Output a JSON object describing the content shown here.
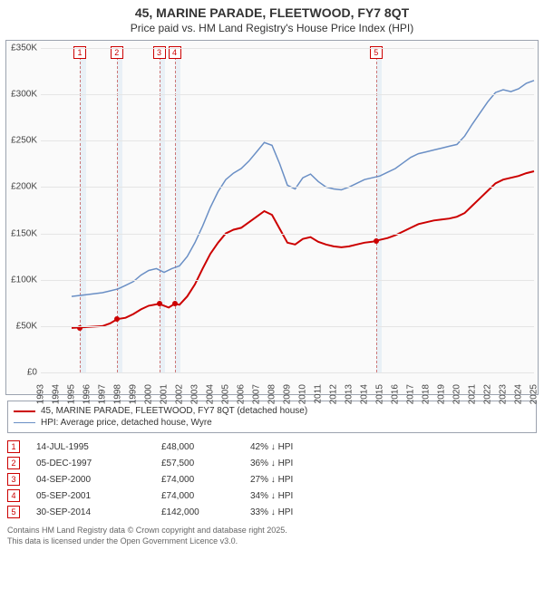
{
  "title1": "45, MARINE PARADE, FLEETWOOD, FY7 8QT",
  "title2": "Price paid vs. HM Land Registry's House Price Index (HPI)",
  "chart": {
    "type": "line",
    "background_color": "#fafafa",
    "grid_color": "#e5e5e5",
    "border_color": "#9ca3af",
    "ylim": [
      0,
      350000
    ],
    "ytick_step": 50000,
    "ytick_labels": [
      "£0",
      "£50K",
      "£100K",
      "£150K",
      "£200K",
      "£250K",
      "£300K",
      "£350K"
    ],
    "x_years": [
      1993,
      1994,
      1995,
      1996,
      1997,
      1998,
      1999,
      2000,
      2001,
      2002,
      2003,
      2004,
      2005,
      2006,
      2007,
      2008,
      2009,
      2010,
      2011,
      2012,
      2013,
      2014,
      2015,
      2016,
      2017,
      2018,
      2019,
      2020,
      2021,
      2022,
      2023,
      2024,
      2025
    ],
    "marker_box_border": "#cc0000",
    "marker_box_text_color": "#cc0000",
    "marker_dash_color": "#cc7777",
    "marker_band_color": "#deeaf4",
    "series": {
      "paid": {
        "label": "45, MARINE PARADE, FLEETWOOD, FY7 8QT (detached house)",
        "color": "#cc0000",
        "line_width": 2,
        "data": [
          [
            1995.0,
            48000
          ],
          [
            1996.0,
            49000
          ],
          [
            1997.0,
            50000
          ],
          [
            1997.5,
            53000
          ],
          [
            1997.95,
            57500
          ],
          [
            1998.5,
            59000
          ],
          [
            1999.0,
            63000
          ],
          [
            1999.5,
            68000
          ],
          [
            2000.0,
            72000
          ],
          [
            2000.68,
            74000
          ],
          [
            2001.3,
            70000
          ],
          [
            2001.68,
            74000
          ],
          [
            2002.0,
            73000
          ],
          [
            2002.5,
            82000
          ],
          [
            2003.0,
            95000
          ],
          [
            2003.5,
            112000
          ],
          [
            2004.0,
            128000
          ],
          [
            2004.5,
            140000
          ],
          [
            2005.0,
            150000
          ],
          [
            2005.5,
            154000
          ],
          [
            2006.0,
            156000
          ],
          [
            2006.5,
            162000
          ],
          [
            2007.0,
            168000
          ],
          [
            2007.5,
            174000
          ],
          [
            2008.0,
            170000
          ],
          [
            2008.5,
            155000
          ],
          [
            2009.0,
            140000
          ],
          [
            2009.5,
            138000
          ],
          [
            2010.0,
            144000
          ],
          [
            2010.5,
            146000
          ],
          [
            2011.0,
            141000
          ],
          [
            2011.5,
            138000
          ],
          [
            2012.0,
            136000
          ],
          [
            2012.5,
            135000
          ],
          [
            2013.0,
            136000
          ],
          [
            2013.5,
            138000
          ],
          [
            2014.0,
            140000
          ],
          [
            2014.5,
            141000
          ],
          [
            2014.75,
            142000
          ],
          [
            2015.0,
            143000
          ],
          [
            2015.5,
            145000
          ],
          [
            2016.0,
            148000
          ],
          [
            2016.5,
            152000
          ],
          [
            2017.0,
            156000
          ],
          [
            2017.5,
            160000
          ],
          [
            2018.0,
            162000
          ],
          [
            2018.5,
            164000
          ],
          [
            2019.0,
            165000
          ],
          [
            2019.5,
            166000
          ],
          [
            2020.0,
            168000
          ],
          [
            2020.5,
            172000
          ],
          [
            2021.0,
            180000
          ],
          [
            2021.5,
            188000
          ],
          [
            2022.0,
            196000
          ],
          [
            2022.5,
            204000
          ],
          [
            2023.0,
            208000
          ],
          [
            2023.5,
            210000
          ],
          [
            2024.0,
            212000
          ],
          [
            2024.5,
            215000
          ],
          [
            2025.0,
            217000
          ]
        ],
        "sale_points": [
          [
            1995.53,
            48000
          ],
          [
            1997.93,
            57500
          ],
          [
            2000.68,
            74000
          ],
          [
            2001.68,
            74000
          ],
          [
            2014.75,
            142000
          ]
        ]
      },
      "hpi": {
        "label": "HPI: Average price, detached house, Wyre",
        "color": "#6a8fc5",
        "line_width": 1.5,
        "data": [
          [
            1995.0,
            82000
          ],
          [
            1996.0,
            84000
          ],
          [
            1997.0,
            86000
          ],
          [
            1997.5,
            88000
          ],
          [
            1998.0,
            90000
          ],
          [
            1998.5,
            94000
          ],
          [
            1999.0,
            98000
          ],
          [
            1999.5,
            105000
          ],
          [
            2000.0,
            110000
          ],
          [
            2000.5,
            112000
          ],
          [
            2001.0,
            108000
          ],
          [
            2001.5,
            112000
          ],
          [
            2002.0,
            115000
          ],
          [
            2002.5,
            125000
          ],
          [
            2003.0,
            140000
          ],
          [
            2003.5,
            158000
          ],
          [
            2004.0,
            178000
          ],
          [
            2004.5,
            195000
          ],
          [
            2005.0,
            208000
          ],
          [
            2005.5,
            215000
          ],
          [
            2006.0,
            220000
          ],
          [
            2006.5,
            228000
          ],
          [
            2007.0,
            238000
          ],
          [
            2007.5,
            248000
          ],
          [
            2008.0,
            245000
          ],
          [
            2008.5,
            225000
          ],
          [
            2009.0,
            202000
          ],
          [
            2009.5,
            198000
          ],
          [
            2010.0,
            210000
          ],
          [
            2010.5,
            214000
          ],
          [
            2011.0,
            206000
          ],
          [
            2011.5,
            200000
          ],
          [
            2012.0,
            198000
          ],
          [
            2012.5,
            197000
          ],
          [
            2013.0,
            200000
          ],
          [
            2013.5,
            204000
          ],
          [
            2014.0,
            208000
          ],
          [
            2014.5,
            210000
          ],
          [
            2015.0,
            212000
          ],
          [
            2015.5,
            216000
          ],
          [
            2016.0,
            220000
          ],
          [
            2016.5,
            226000
          ],
          [
            2017.0,
            232000
          ],
          [
            2017.5,
            236000
          ],
          [
            2018.0,
            238000
          ],
          [
            2018.5,
            240000
          ],
          [
            2019.0,
            242000
          ],
          [
            2019.5,
            244000
          ],
          [
            2020.0,
            246000
          ],
          [
            2020.5,
            255000
          ],
          [
            2021.0,
            268000
          ],
          [
            2021.5,
            280000
          ],
          [
            2022.0,
            292000
          ],
          [
            2022.5,
            302000
          ],
          [
            2023.0,
            305000
          ],
          [
            2023.5,
            303000
          ],
          [
            2024.0,
            306000
          ],
          [
            2024.5,
            312000
          ],
          [
            2025.0,
            315000
          ]
        ]
      }
    },
    "markers": [
      {
        "n": "1",
        "x": 1995.53,
        "date": "14-JUL-1995",
        "price": "£48,000",
        "diff": "42% ↓ HPI"
      },
      {
        "n": "2",
        "x": 1997.93,
        "date": "05-DEC-1997",
        "price": "£57,500",
        "diff": "36% ↓ HPI"
      },
      {
        "n": "3",
        "x": 2000.68,
        "date": "04-SEP-2000",
        "price": "£74,000",
        "diff": "27% ↓ HPI"
      },
      {
        "n": "4",
        "x": 2001.68,
        "date": "05-SEP-2001",
        "price": "£74,000",
        "diff": "34% ↓ HPI"
      },
      {
        "n": "5",
        "x": 2014.75,
        "date": "30-SEP-2014",
        "price": "£142,000",
        "diff": "33% ↓ HPI"
      }
    ]
  },
  "footnote1": "Contains HM Land Registry data © Crown copyright and database right 2025.",
  "footnote2": "This data is licensed under the Open Government Licence v3.0."
}
